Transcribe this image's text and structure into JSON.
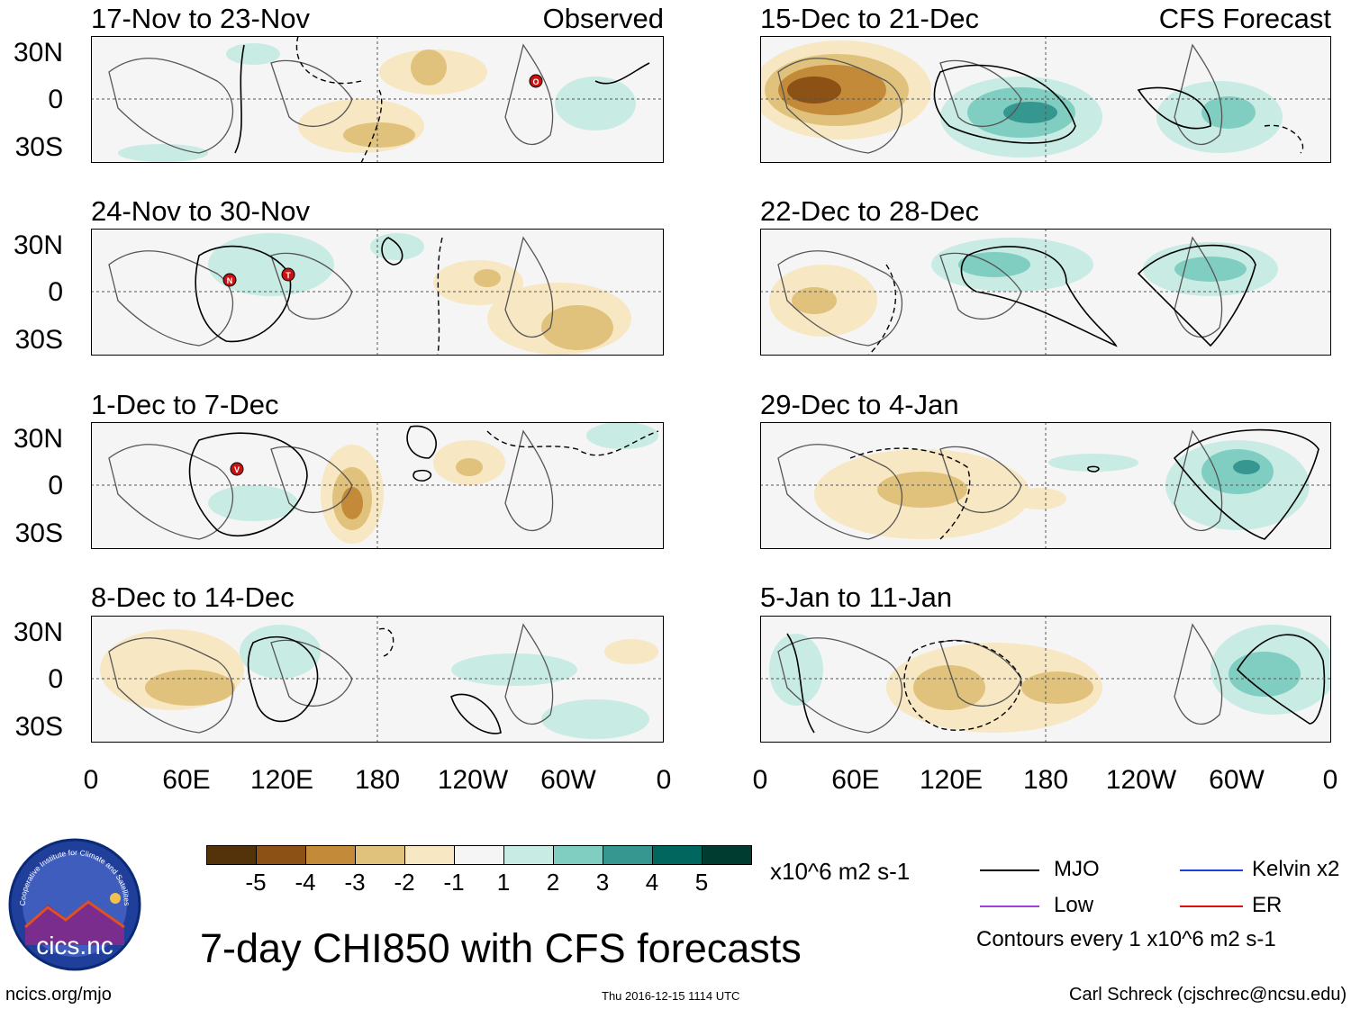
{
  "columns": {
    "left": {
      "tag": "Observed"
    },
    "right": {
      "tag": "CFS Forecast"
    }
  },
  "panels": {
    "left": [
      {
        "period": "17-Nov to 23-Nov"
      },
      {
        "period": "24-Nov to 30-Nov"
      },
      {
        "period": "1-Dec to 7-Dec"
      },
      {
        "period": "8-Dec to 14-Dec"
      }
    ],
    "right": [
      {
        "period": "15-Dec to 21-Dec"
      },
      {
        "period": "22-Dec to 28-Dec"
      },
      {
        "period": "29-Dec to 4-Jan"
      },
      {
        "period": "5-Jan to 11-Jan"
      }
    ]
  },
  "lat_labels": [
    "30N",
    "0",
    "30S"
  ],
  "lon_labels": [
    "0",
    "60E",
    "120E",
    "180",
    "120W",
    "60W",
    "0"
  ],
  "storm_markers": [
    {
      "letter": "O"
    },
    {
      "letter": "N"
    },
    {
      "letter": "T"
    },
    {
      "letter": "V"
    }
  ],
  "colorbar": {
    "colors": [
      "#54320a",
      "#8c5114",
      "#c38a39",
      "#e0c27c",
      "#f7e7c2",
      "#f5f5f5",
      "#c8ebe3",
      "#80cdc1",
      "#35978f",
      "#01665e",
      "#003c30"
    ],
    "ticks": [
      "-5",
      "-4",
      "-3",
      "-2",
      "-1",
      "1",
      "2",
      "3",
      "4",
      "5"
    ],
    "units": "x10^6 m2 s-1"
  },
  "legend": {
    "items": [
      {
        "label": "MJO",
        "color": "#000000"
      },
      {
        "label": "Kelvin x2",
        "color": "#1f3fe0"
      },
      {
        "label": "Low",
        "color": "#a040e0"
      },
      {
        "label": "ER",
        "color": "#e01010"
      }
    ],
    "contours": "Contours every 1 x10^6 m2 s-1"
  },
  "logo": {
    "text": "cics.nc",
    "ring_text": "Cooperative Institute for Climate and Satellites"
  },
  "main_title": "7-day CHI850 with CFS forecasts",
  "footer": {
    "left": "ncics.org/mjo",
    "center": "Thu 2016-12-15 1114 UTC",
    "right": "Carl Schreck (cjschrec@ncsu.edu)"
  }
}
